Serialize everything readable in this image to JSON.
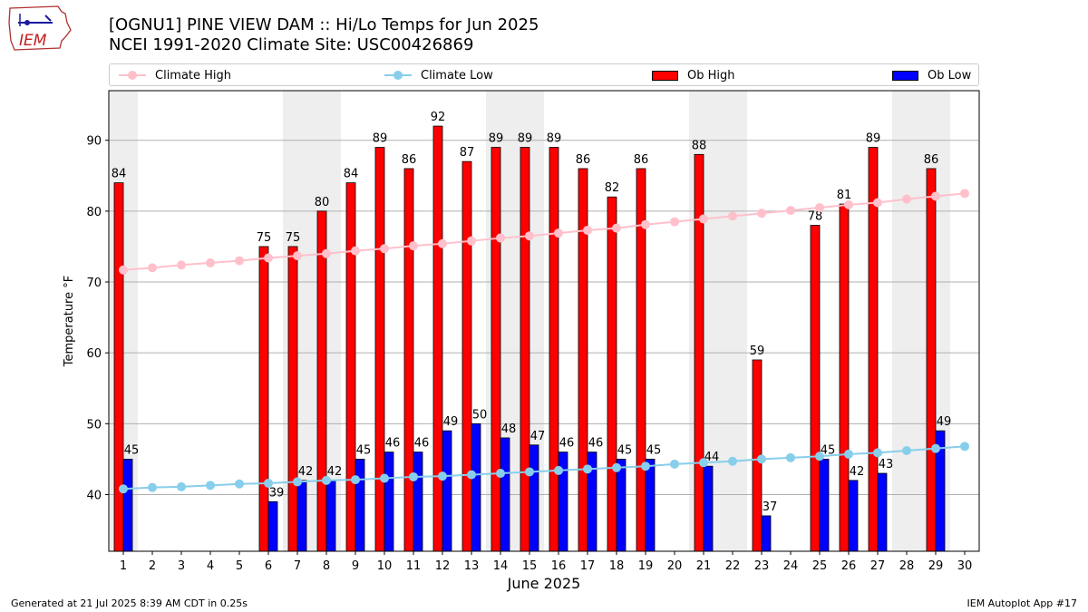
{
  "logo": {
    "text": "IEM"
  },
  "title_line1": "[OGNU1] PINE VIEW DAM :: Hi/Lo Temps for Jun 2025",
  "title_line2": "NCEI 1991-2020 Climate Site: USC00426869",
  "footer_left": "Generated at 21 Jul 2025 8:39 AM CDT in 0.25s",
  "footer_right": "IEM Autoplot App #17",
  "colors": {
    "ob_high": "#ff0000",
    "ob_low": "#0000ff",
    "climate_high": "#ffc0cb",
    "climate_low": "#87ceeb",
    "weekend": "#eeeeee"
  },
  "chart_data": {
    "type": "bar",
    "xlabel": "June 2025",
    "ylabel": "Temperature °F",
    "ylim": [
      32,
      97
    ],
    "yticks": [
      40,
      50,
      60,
      70,
      80,
      90
    ],
    "grid": true,
    "legend_position": "top",
    "categories": [
      "1",
      "2",
      "3",
      "4",
      "5",
      "6",
      "7",
      "8",
      "9",
      "10",
      "11",
      "12",
      "13",
      "14",
      "15",
      "16",
      "17",
      "18",
      "19",
      "20",
      "21",
      "22",
      "23",
      "24",
      "25",
      "26",
      "27",
      "28",
      "29",
      "30"
    ],
    "weekend_days": [
      "1",
      "7",
      "8",
      "14",
      "15",
      "21",
      "22",
      "28",
      "29"
    ],
    "series": [
      {
        "name": "Climate High",
        "kind": "line",
        "values": [
          71.7,
          72.0,
          72.4,
          72.7,
          73.0,
          73.4,
          73.7,
          74.0,
          74.4,
          74.7,
          75.1,
          75.4,
          75.8,
          76.2,
          76.5,
          76.9,
          77.3,
          77.6,
          78.1,
          78.5,
          78.9,
          79.3,
          79.7,
          80.1,
          80.5,
          80.9,
          81.2,
          81.7,
          82.1,
          82.5
        ]
      },
      {
        "name": "Climate Low",
        "kind": "line",
        "values": [
          40.8,
          41.0,
          41.1,
          41.3,
          41.5,
          41.6,
          41.8,
          42.0,
          42.1,
          42.3,
          42.5,
          42.6,
          42.8,
          43.0,
          43.2,
          43.4,
          43.6,
          43.8,
          44.0,
          44.3,
          44.5,
          44.7,
          45.0,
          45.2,
          45.4,
          45.7,
          45.9,
          46.2,
          46.5,
          46.8
        ]
      },
      {
        "name": "Ob High",
        "kind": "bar",
        "values": [
          84,
          null,
          null,
          null,
          null,
          75,
          75,
          80,
          84,
          89,
          86,
          92,
          87,
          89,
          89,
          89,
          86,
          82,
          86,
          null,
          88,
          null,
          59,
          null,
          78,
          81,
          89,
          null,
          86,
          null
        ]
      },
      {
        "name": "Ob Low",
        "kind": "bar",
        "values": [
          45,
          null,
          null,
          null,
          null,
          39,
          42,
          42,
          45,
          46,
          46,
          49,
          50,
          48,
          47,
          46,
          46,
          45,
          45,
          null,
          44,
          null,
          37,
          null,
          45,
          42,
          43,
          null,
          49,
          null
        ]
      }
    ]
  }
}
